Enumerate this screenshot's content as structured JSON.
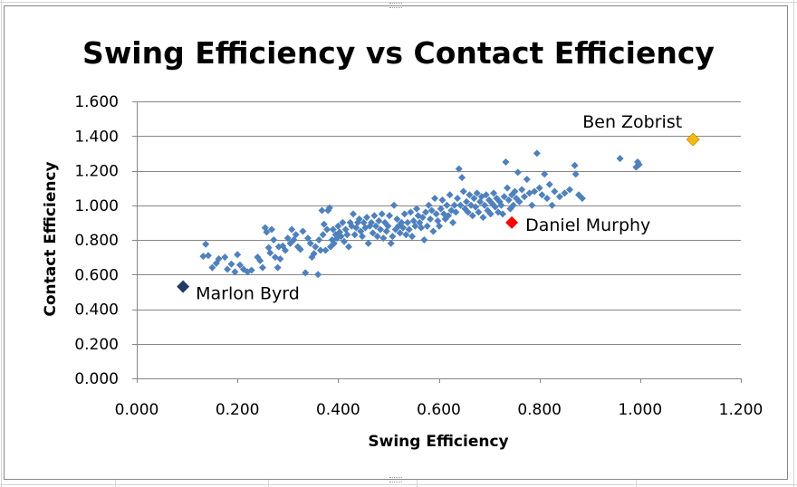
{
  "chart_data": {
    "type": "scatter",
    "title": "Swing Efficiency vs Contact Efficiency",
    "xlabel": "Swing Efficiency",
    "ylabel": "Contact Efficiency",
    "xlim": [
      0,
      1.2
    ],
    "ylim": [
      0,
      1.6
    ],
    "x_ticks": [
      "0.000",
      "0.200",
      "0.400",
      "0.600",
      "0.800",
      "1.000",
      "1.200"
    ],
    "y_ticks": [
      "0.000",
      "0.200",
      "0.400",
      "0.600",
      "0.800",
      "1.000",
      "1.200",
      "1.400",
      "1.600"
    ],
    "grid": "horizontal major",
    "legend": "none",
    "colors": {
      "points": "#4F81BD",
      "marlon_byrd": "#1F3864",
      "daniel_murphy": "#FF0000",
      "ben_zobrist": "#F5B914",
      "grid": "#868686",
      "frame": "#868686"
    },
    "series": [
      {
        "marker": "diamond",
        "points": [
          [
            0.132,
            0.705
          ],
          [
            0.137,
            0.775
          ],
          [
            0.142,
            0.71
          ],
          [
            0.15,
            0.64
          ],
          [
            0.158,
            0.665
          ],
          [
            0.163,
            0.69
          ],
          [
            0.175,
            0.7
          ],
          [
            0.18,
            0.63
          ],
          [
            0.188,
            0.66
          ],
          [
            0.195,
            0.615
          ],
          [
            0.2,
            0.715
          ],
          [
            0.205,
            0.655
          ],
          [
            0.212,
            0.63
          ],
          [
            0.22,
            0.615
          ],
          [
            0.228,
            0.625
          ],
          [
            0.24,
            0.7
          ],
          [
            0.245,
            0.68
          ],
          [
            0.25,
            0.64
          ],
          [
            0.255,
            0.87
          ],
          [
            0.258,
            0.845
          ],
          [
            0.262,
            0.755
          ],
          [
            0.265,
            0.725
          ],
          [
            0.268,
            0.86
          ],
          [
            0.272,
            0.8
          ],
          [
            0.275,
            0.7
          ],
          [
            0.28,
            0.64
          ],
          [
            0.282,
            0.76
          ],
          [
            0.285,
            0.69
          ],
          [
            0.29,
            0.765
          ],
          [
            0.295,
            0.74
          ],
          [
            0.3,
            0.81
          ],
          [
            0.305,
            0.78
          ],
          [
            0.308,
            0.86
          ],
          [
            0.312,
            0.8
          ],
          [
            0.316,
            0.83
          ],
          [
            0.32,
            0.76
          ],
          [
            0.325,
            0.745
          ],
          [
            0.33,
            0.85
          ],
          [
            0.335,
            0.61
          ],
          [
            0.34,
            0.81
          ],
          [
            0.345,
            0.78
          ],
          [
            0.348,
            0.7
          ],
          [
            0.352,
            0.72
          ],
          [
            0.355,
            0.76
          ],
          [
            0.36,
            0.6
          ],
          [
            0.362,
            0.8
          ],
          [
            0.365,
            0.74
          ],
          [
            0.368,
            0.97
          ],
          [
            0.37,
            0.83
          ],
          [
            0.372,
            0.89
          ],
          [
            0.375,
            0.74
          ],
          [
            0.378,
            0.86
          ],
          [
            0.38,
            0.97
          ],
          [
            0.383,
            0.985
          ],
          [
            0.385,
            0.76
          ],
          [
            0.388,
            0.8
          ],
          [
            0.39,
            0.86
          ],
          [
            0.392,
            0.78
          ],
          [
            0.395,
            0.83
          ],
          [
            0.398,
            0.81
          ],
          [
            0.4,
            0.88
          ],
          [
            0.403,
            0.845
          ],
          [
            0.406,
            0.82
          ],
          [
            0.409,
            0.9
          ],
          [
            0.412,
            0.79
          ],
          [
            0.415,
            0.86
          ],
          [
            0.418,
            0.83
          ],
          [
            0.421,
            0.76
          ],
          [
            0.424,
            0.9
          ],
          [
            0.427,
            0.88
          ],
          [
            0.43,
            0.95
          ],
          [
            0.433,
            0.83
          ],
          [
            0.436,
            0.87
          ],
          [
            0.439,
            0.9
          ],
          [
            0.442,
            0.92
          ],
          [
            0.445,
            0.85
          ],
          [
            0.448,
            0.82
          ],
          [
            0.451,
            0.9
          ],
          [
            0.454,
            0.87
          ],
          [
            0.457,
            0.93
          ],
          [
            0.46,
            0.78
          ],
          [
            0.463,
            0.88
          ],
          [
            0.466,
            0.9
          ],
          [
            0.469,
            0.84
          ],
          [
            0.472,
            0.94
          ],
          [
            0.475,
            0.88
          ],
          [
            0.478,
            0.82
          ],
          [
            0.481,
            0.91
          ],
          [
            0.484,
            0.86
          ],
          [
            0.487,
            0.95
          ],
          [
            0.49,
            0.81
          ],
          [
            0.493,
            0.9
          ],
          [
            0.496,
            0.85
          ],
          [
            0.499,
            0.88
          ],
          [
            0.502,
            0.94
          ],
          [
            0.505,
            0.78
          ],
          [
            0.508,
            0.82
          ],
          [
            0.511,
            1.0
          ],
          [
            0.514,
            0.86
          ],
          [
            0.517,
            0.92
          ],
          [
            0.52,
            0.88
          ],
          [
            0.523,
            0.84
          ],
          [
            0.526,
            0.9
          ],
          [
            0.529,
            0.87
          ],
          [
            0.532,
            0.95
          ],
          [
            0.535,
            0.83
          ],
          [
            0.538,
            0.9
          ],
          [
            0.541,
            0.86
          ],
          [
            0.544,
            0.96
          ],
          [
            0.547,
            0.82
          ],
          [
            0.55,
            0.91
          ],
          [
            0.553,
            0.88
          ],
          [
            0.556,
            0.98
          ],
          [
            0.559,
            0.94
          ],
          [
            0.562,
            0.9
          ],
          [
            0.565,
            0.87
          ],
          [
            0.568,
            0.93
          ],
          [
            0.571,
            0.8
          ],
          [
            0.574,
            0.96
          ],
          [
            0.577,
            0.88
          ],
          [
            0.58,
            1.0
          ],
          [
            0.583,
            0.92
          ],
          [
            0.586,
            0.97
          ],
          [
            0.589,
            0.85
          ],
          [
            0.592,
            1.04
          ],
          [
            0.595,
            0.95
          ],
          [
            0.598,
            0.91
          ],
          [
            0.601,
            0.88
          ],
          [
            0.604,
            0.98
          ],
          [
            0.607,
            1.03
          ],
          [
            0.61,
            0.95
          ],
          [
            0.613,
            0.92
          ],
          [
            0.616,
            1.0
          ],
          [
            0.619,
            0.94
          ],
          [
            0.622,
            1.06
          ],
          [
            0.625,
            0.97
          ],
          [
            0.628,
            0.9
          ],
          [
            0.631,
            1.0
          ],
          [
            0.634,
            0.96
          ],
          [
            0.637,
            1.04
          ],
          [
            0.64,
            1.21
          ],
          [
            0.643,
            1.0
          ],
          [
            0.646,
            1.16
          ],
          [
            0.649,
            1.08
          ],
          [
            0.652,
            0.98
          ],
          [
            0.655,
            1.02
          ],
          [
            0.658,
            0.96
          ],
          [
            0.661,
            1.06
          ],
          [
            0.664,
            1.0
          ],
          [
            0.667,
            0.94
          ],
          [
            0.67,
            1.04
          ],
          [
            0.673,
            0.99
          ],
          [
            0.676,
            1.07
          ],
          [
            0.679,
            0.96
          ],
          [
            0.682,
            1.02
          ],
          [
            0.685,
            1.05
          ],
          [
            0.688,
            0.93
          ],
          [
            0.691,
            1.0
          ],
          [
            0.694,
            1.06
          ],
          [
            0.697,
            0.97
          ],
          [
            0.7,
            1.03
          ],
          [
            0.703,
            0.95
          ],
          [
            0.706,
            1.01
          ],
          [
            0.709,
            1.07
          ],
          [
            0.712,
            0.99
          ],
          [
            0.715,
            1.04
          ],
          [
            0.718,
            0.96
          ],
          [
            0.721,
            1.02
          ],
          [
            0.724,
            1.0
          ],
          [
            0.727,
            0.95
          ],
          [
            0.73,
            1.05
          ],
          [
            0.733,
            1.25
          ],
          [
            0.736,
            1.1
          ],
          [
            0.739,
            1.03
          ],
          [
            0.742,
            0.98
          ],
          [
            0.745,
            1.06
          ],
          [
            0.748,
            1.0
          ],
          [
            0.751,
            1.08
          ],
          [
            0.754,
            1.04
          ],
          [
            0.757,
            1.19
          ],
          [
            0.76,
            1.02
          ],
          [
            0.765,
            1.09
          ],
          [
            0.77,
            1.05
          ],
          [
            0.775,
            1.15
          ],
          [
            0.78,
            1.07
          ],
          [
            0.785,
            1.0
          ],
          [
            0.79,
            1.08
          ],
          [
            0.795,
            1.3
          ],
          [
            0.8,
            1.1
          ],
          [
            0.805,
            1.06
          ],
          [
            0.81,
            1.18
          ],
          [
            0.815,
            1.04
          ],
          [
            0.82,
            1.12
          ],
          [
            0.825,
            1.0
          ],
          [
            0.83,
            1.08
          ],
          [
            0.84,
            1.05
          ],
          [
            0.85,
            1.07
          ],
          [
            0.86,
            1.09
          ],
          [
            0.87,
            1.23
          ],
          [
            0.872,
            1.18
          ],
          [
            0.878,
            1.06
          ],
          [
            0.885,
            1.04
          ],
          [
            0.96,
            1.27
          ],
          [
            0.992,
            1.22
          ],
          [
            0.995,
            1.25
          ],
          [
            0.998,
            1.235
          ]
        ]
      }
    ],
    "highlighted": [
      {
        "label": "Marlon Byrd",
        "x": 0.092,
        "y": 0.53,
        "color_key": "marlon_byrd"
      },
      {
        "label": "Daniel Murphy",
        "x": 0.745,
        "y": 0.9,
        "color_key": "daniel_murphy"
      },
      {
        "label": "Ben Zobrist",
        "x": 1.105,
        "y": 1.38,
        "color_key": "ben_zobrist"
      }
    ]
  }
}
